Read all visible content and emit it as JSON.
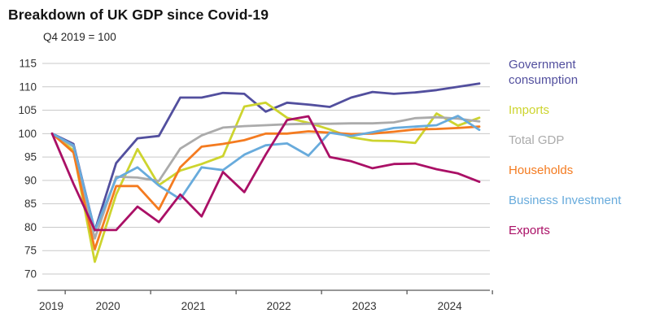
{
  "header": {
    "title": "Breakdown of UK GDP since Covid-19",
    "subtitle": "Q4 2019 = 100"
  },
  "chart_data": {
    "type": "line",
    "title": "Breakdown of UK GDP since Covid-19",
    "subtitle": "Q4 2019 = 100",
    "x_quarters": [
      "Q4 2019",
      "Q1 2020",
      "Q2 2020",
      "Q3 2020",
      "Q4 2020",
      "Q1 2021",
      "Q2 2021",
      "Q3 2021",
      "Q4 2021",
      "Q1 2022",
      "Q2 2022",
      "Q3 2022",
      "Q4 2022",
      "Q1 2023",
      "Q2 2023",
      "Q3 2023",
      "Q4 2023",
      "Q1 2024",
      "Q2 2024",
      "Q3 2024",
      "Q4 2024"
    ],
    "x_year_labels": [
      "2019",
      "2020",
      "2021",
      "2022",
      "2023",
      "2024"
    ],
    "yticks": [
      70,
      75,
      80,
      85,
      90,
      95,
      100,
      105,
      110,
      115
    ],
    "ylim": [
      70,
      115
    ],
    "grid": true,
    "legend_position": "right",
    "series": [
      {
        "name": "Government consumption",
        "color": "#524F9E",
        "values": [
          100,
          97.8,
          79.3,
          93.7,
          99.0,
          99.5,
          107.7,
          107.7,
          108.7,
          108.5,
          104.7,
          106.6,
          106.2,
          105.7,
          107.7,
          108.9,
          108.5,
          108.8,
          109.3,
          110.0,
          110.7
        ]
      },
      {
        "name": "Imports",
        "color": "#CDD42E",
        "values": [
          100,
          96.4,
          72.6,
          87.0,
          96.7,
          89.0,
          92.1,
          93.5,
          95.2,
          105.8,
          106.6,
          103.4,
          102.3,
          100.9,
          99.2,
          98.5,
          98.4,
          98.0,
          104.3,
          101.7,
          103.4
        ]
      },
      {
        "name": "Total GDP",
        "color": "#ABABAB",
        "values": [
          100,
          97.2,
          77.6,
          90.8,
          90.6,
          89.9,
          96.8,
          99.6,
          101.3,
          101.6,
          101.8,
          102.0,
          102.1,
          102.1,
          102.2,
          102.2,
          102.4,
          103.3,
          103.5,
          103.2,
          102.6
        ]
      },
      {
        "name": "Households",
        "color": "#F47B20",
        "values": [
          100,
          96.0,
          75.3,
          88.8,
          88.8,
          83.8,
          92.8,
          97.2,
          97.8,
          98.6,
          100.0,
          100.0,
          100.5,
          100.2,
          99.9,
          100.0,
          100.4,
          100.9,
          101.0,
          101.2,
          101.5
        ]
      },
      {
        "name": "Business Investment",
        "color": "#68ABDC",
        "values": [
          100,
          97.5,
          79.3,
          90.4,
          92.8,
          88.9,
          86.0,
          92.8,
          92.2,
          95.5,
          97.5,
          97.9,
          95.3,
          100.2,
          99.5,
          100.3,
          101.2,
          101.5,
          101.8,
          103.8,
          100.8
        ]
      },
      {
        "name": "Exports",
        "color": "#AA1066",
        "values": [
          100,
          89.3,
          79.4,
          79.4,
          84.4,
          81.1,
          87.0,
          82.3,
          91.8,
          87.5,
          95.5,
          102.9,
          103.7,
          95.0,
          94.1,
          92.6,
          93.5,
          93.6,
          92.4,
          91.5,
          89.7
        ]
      }
    ],
    "axis_color": "#595959",
    "grid_color": "#C9C9C9",
    "tick_label_color": "#333333"
  }
}
